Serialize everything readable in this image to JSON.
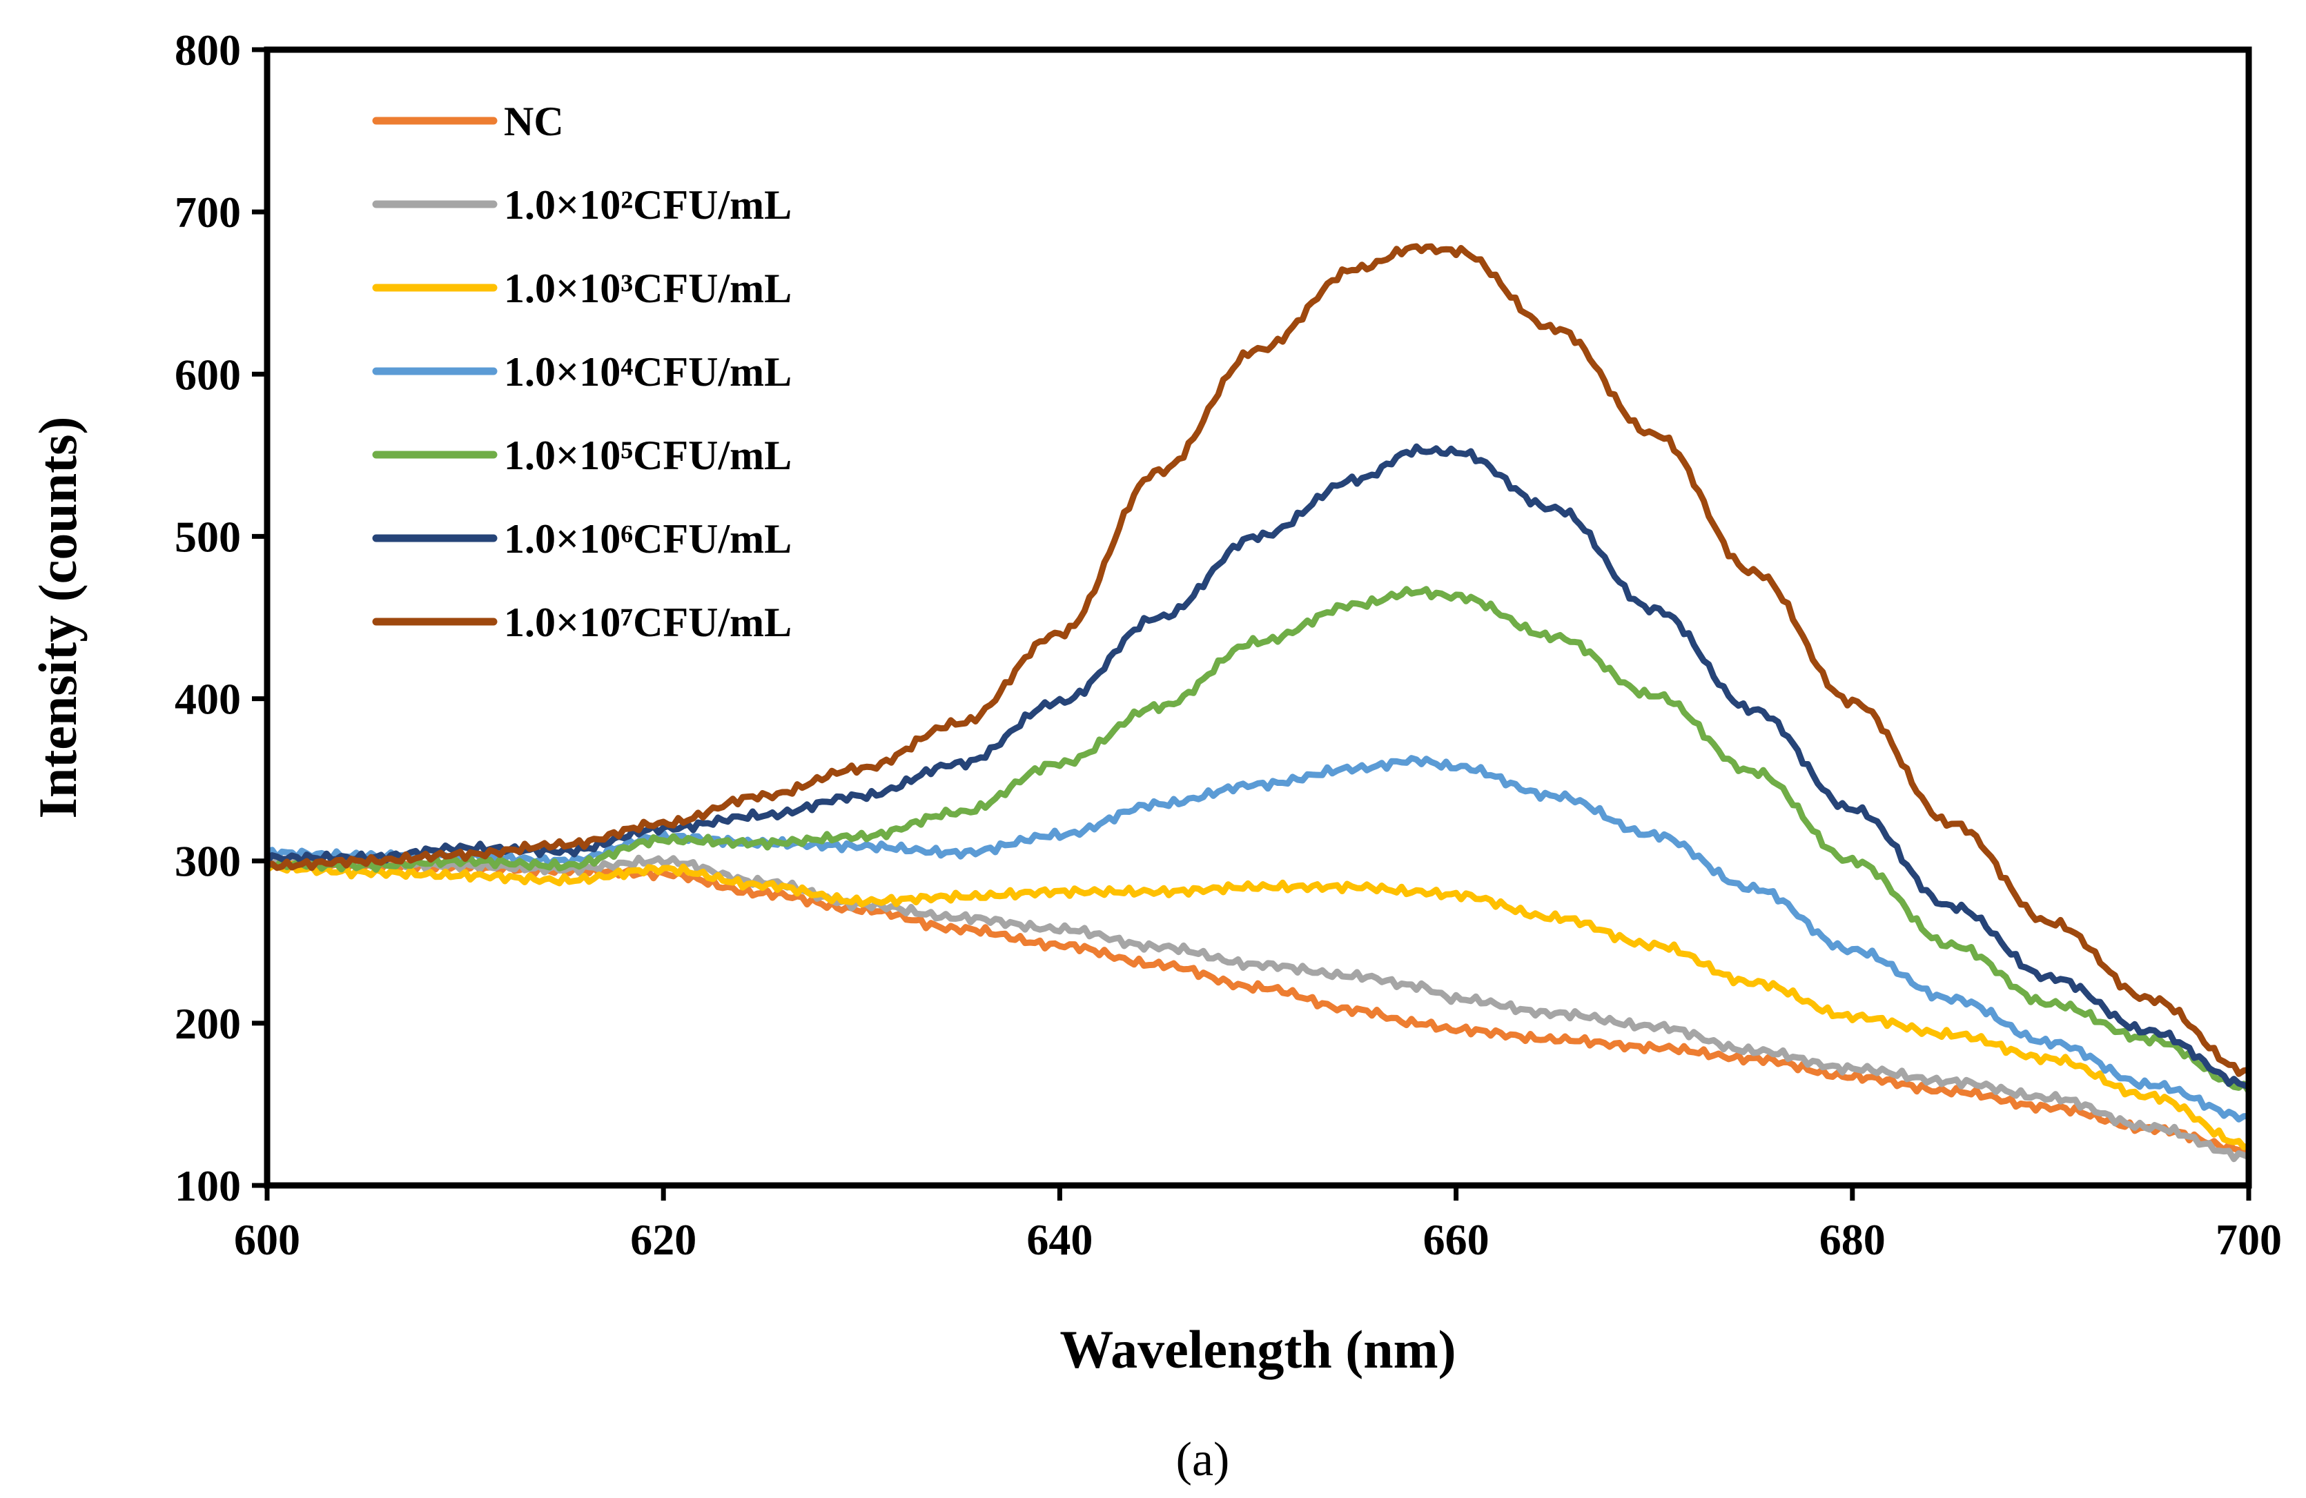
{
  "chart_data": {
    "type": "line",
    "caption": "(a)",
    "xlabel": "Wavelength (nm)",
    "ylabel": "Intensity (counts)",
    "xlim": [
      600,
      700
    ],
    "ylim": [
      100,
      800
    ],
    "xticks": [
      600,
      620,
      640,
      660,
      680,
      700
    ],
    "yticks": [
      100,
      200,
      300,
      400,
      500,
      600,
      700,
      800
    ],
    "grid": false,
    "legend_position": "top-left",
    "x": [
      600,
      605,
      610,
      615,
      620,
      625,
      630,
      635,
      640,
      645,
      650,
      655,
      658,
      660,
      665,
      670,
      675,
      680,
      685,
      690,
      695,
      700
    ],
    "series": [
      {
        "name": "NC",
        "color": "#ED7D31",
        "values": [
          298,
          297,
          296,
          294,
          292,
          280,
          270,
          258,
          248,
          236,
          222,
          208,
          200,
          196,
          190,
          185,
          178,
          167,
          158,
          148,
          135,
          122
        ]
      },
      {
        "name": "1.0×10²CFU/mL",
        "color": "#A5A5A5",
        "values": [
          300,
          298,
          297,
          295,
          300,
          287,
          273,
          265,
          258,
          247,
          236,
          229,
          223,
          215,
          206,
          198,
          183,
          172,
          164,
          154,
          136,
          118
        ]
      },
      {
        "name": "1.0×10³CFU/mL",
        "color": "#FFC000",
        "values": [
          296,
          293,
          291,
          288,
          295,
          285,
          275,
          278,
          281,
          281,
          284,
          284,
          281,
          279,
          265,
          248,
          225,
          204,
          193,
          178,
          155,
          125
        ]
      },
      {
        "name": "1.0×10⁴CFU/mL",
        "color": "#5B9BD5",
        "values": [
          305,
          303,
          303,
          300,
          315,
          311,
          309,
          305,
          316,
          335,
          347,
          357,
          362,
          358,
          340,
          316,
          283,
          245,
          215,
          188,
          162,
          142
        ]
      },
      {
        "name": "1.0×10⁵CFU/mL",
        "color": "#70AD47",
        "values": [
          298,
          297,
          300,
          297,
          313,
          311,
          315,
          330,
          360,
          395,
          435,
          458,
          466,
          463,
          438,
          402,
          355,
          300,
          248,
          212,
          190,
          160
        ]
      },
      {
        "name": "1.0×10⁶CFU/mL",
        "color": "#264478",
        "values": [
          302,
          302,
          308,
          306,
          320,
          328,
          340,
          360,
          398,
          450,
          500,
          535,
          553,
          552,
          517,
          455,
          393,
          332,
          272,
          228,
          195,
          162
        ]
      },
      {
        "name": "1.0×10⁷CFU/mL",
        "color": "#9E480E",
        "values": [
          297,
          300,
          304,
          310,
          323,
          340,
          357,
          385,
          440,
          540,
          615,
          665,
          678,
          676,
          628,
          563,
          478,
          398,
          323,
          262,
          215,
          170
        ]
      }
    ]
  }
}
